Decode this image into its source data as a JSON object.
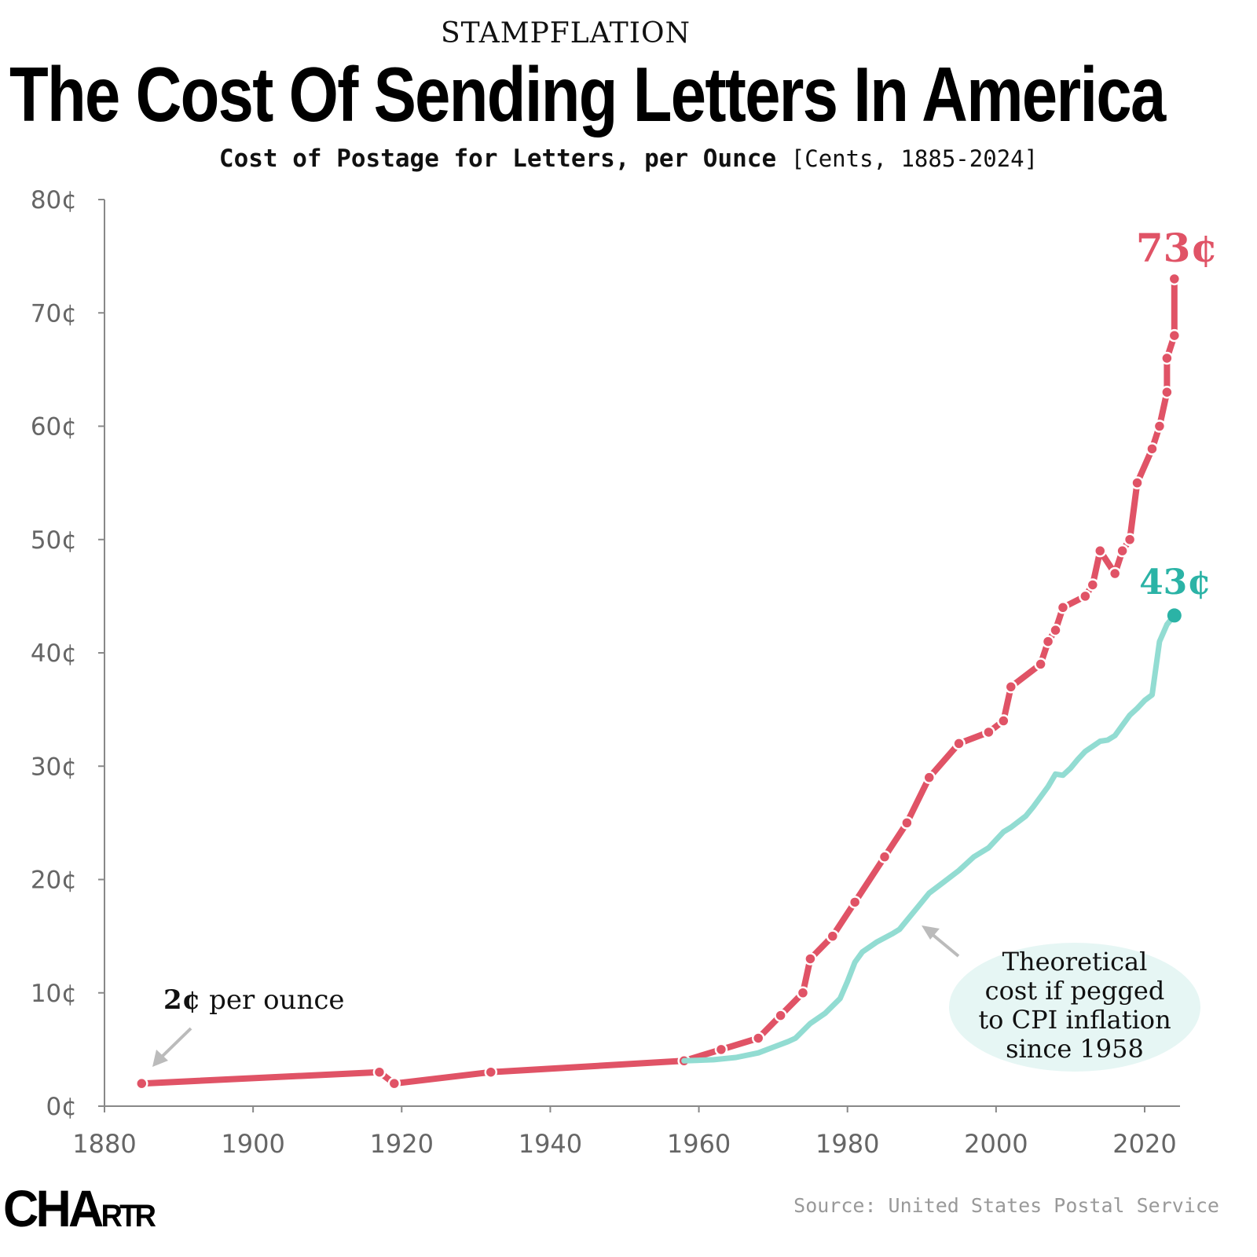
{
  "kicker": "STAMPFLATION",
  "title": "The Cost Of Sending Letters In America",
  "subtitle": {
    "main": "Cost of Postage for Letters, per Ounce",
    "unit": "[Cents, 1885-2024]"
  },
  "source": "Source: United States Postal Service",
  "brand": {
    "big": "CHA",
    "small": "RTR"
  },
  "colors": {
    "postage": "#e05366",
    "cpi": "#92dcd2",
    "cpi_label": "#2bb3a6",
    "bubble": "#e6f6f4",
    "axis": "#888888"
  },
  "chart_data": {
    "type": "line",
    "title": "Cost of Postage for Letters, per Ounce",
    "xlim": [
      1880,
      2025
    ],
    "ylim": [
      0,
      80
    ],
    "x_ticks": [
      1880,
      1900,
      1920,
      1940,
      1960,
      1980,
      2000,
      2020
    ],
    "x_tick_labels": [
      "1880",
      "1900",
      "1920",
      "1940",
      "1960",
      "1980",
      "2000",
      "2020"
    ],
    "y_ticks": [
      0,
      10,
      20,
      30,
      40,
      50,
      60,
      70,
      80
    ],
    "y_tick_labels": [
      "0¢",
      "10¢",
      "20¢",
      "30¢",
      "40¢",
      "50¢",
      "60¢",
      "70¢",
      "80¢"
    ],
    "grid": false,
    "series": [
      {
        "key": "postage",
        "x": [
          1885,
          1917,
          1919,
          1932,
          1958,
          1963,
          1968,
          1971,
          1974,
          1975,
          1978,
          1981,
          1985,
          1988,
          1991,
          1995,
          1999,
          2001,
          2002,
          2006,
          2007,
          2008,
          2009,
          2012,
          2013,
          2014,
          2016,
          2017,
          2018,
          2019,
          2021,
          2022,
          2023,
          2023,
          2024,
          2024
        ],
        "y": [
          2,
          3,
          2,
          3,
          4,
          5,
          6,
          8,
          10,
          13,
          15,
          18,
          22,
          25,
          29,
          32,
          33,
          34,
          37,
          39,
          41,
          42,
          44,
          45,
          46,
          49,
          47,
          49,
          50,
          55,
          58,
          60,
          63,
          66,
          68,
          73
        ],
        "markers": true,
        "end_label": "73¢"
      },
      {
        "key": "cpi",
        "x": [
          1958,
          1962,
          1965,
          1968,
          1970,
          1972,
          1973,
          1975,
          1977,
          1979,
          1980,
          1981,
          1982,
          1984,
          1986,
          1987,
          1988,
          1990,
          1991,
          1993,
          1995,
          1997,
          1999,
          2001,
          2002,
          2004,
          2005,
          2007,
          2008,
          2009,
          2010,
          2011,
          2012,
          2014,
          2015,
          2016,
          2017,
          2018,
          2019,
          2020,
          2021,
          2022,
          2023,
          2024
        ],
        "y": [
          4,
          4.1,
          4.3,
          4.7,
          5.2,
          5.7,
          6,
          7.3,
          8.2,
          9.5,
          11,
          12.7,
          13.6,
          14.5,
          15.2,
          15.6,
          16.4,
          18,
          18.8,
          19.8,
          20.8,
          22,
          22.8,
          24.2,
          24.6,
          25.6,
          26.4,
          28.2,
          29.3,
          29.2,
          29.8,
          30.6,
          31.3,
          32.2,
          32.3,
          32.7,
          33.6,
          34.5,
          35.1,
          35.8,
          36.3,
          41,
          42.5,
          43.3
        ],
        "markers": false,
        "end_label": "43¢"
      }
    ],
    "annotations": [
      {
        "text_bold": "2¢",
        "text": " per ounce",
        "points_to": [
          1885,
          2
        ]
      },
      {
        "lines": [
          "Theoretical",
          "cost if pegged",
          "to CPI inflation",
          "since 1958"
        ],
        "points_to": [
          1989,
          16
        ]
      }
    ]
  }
}
